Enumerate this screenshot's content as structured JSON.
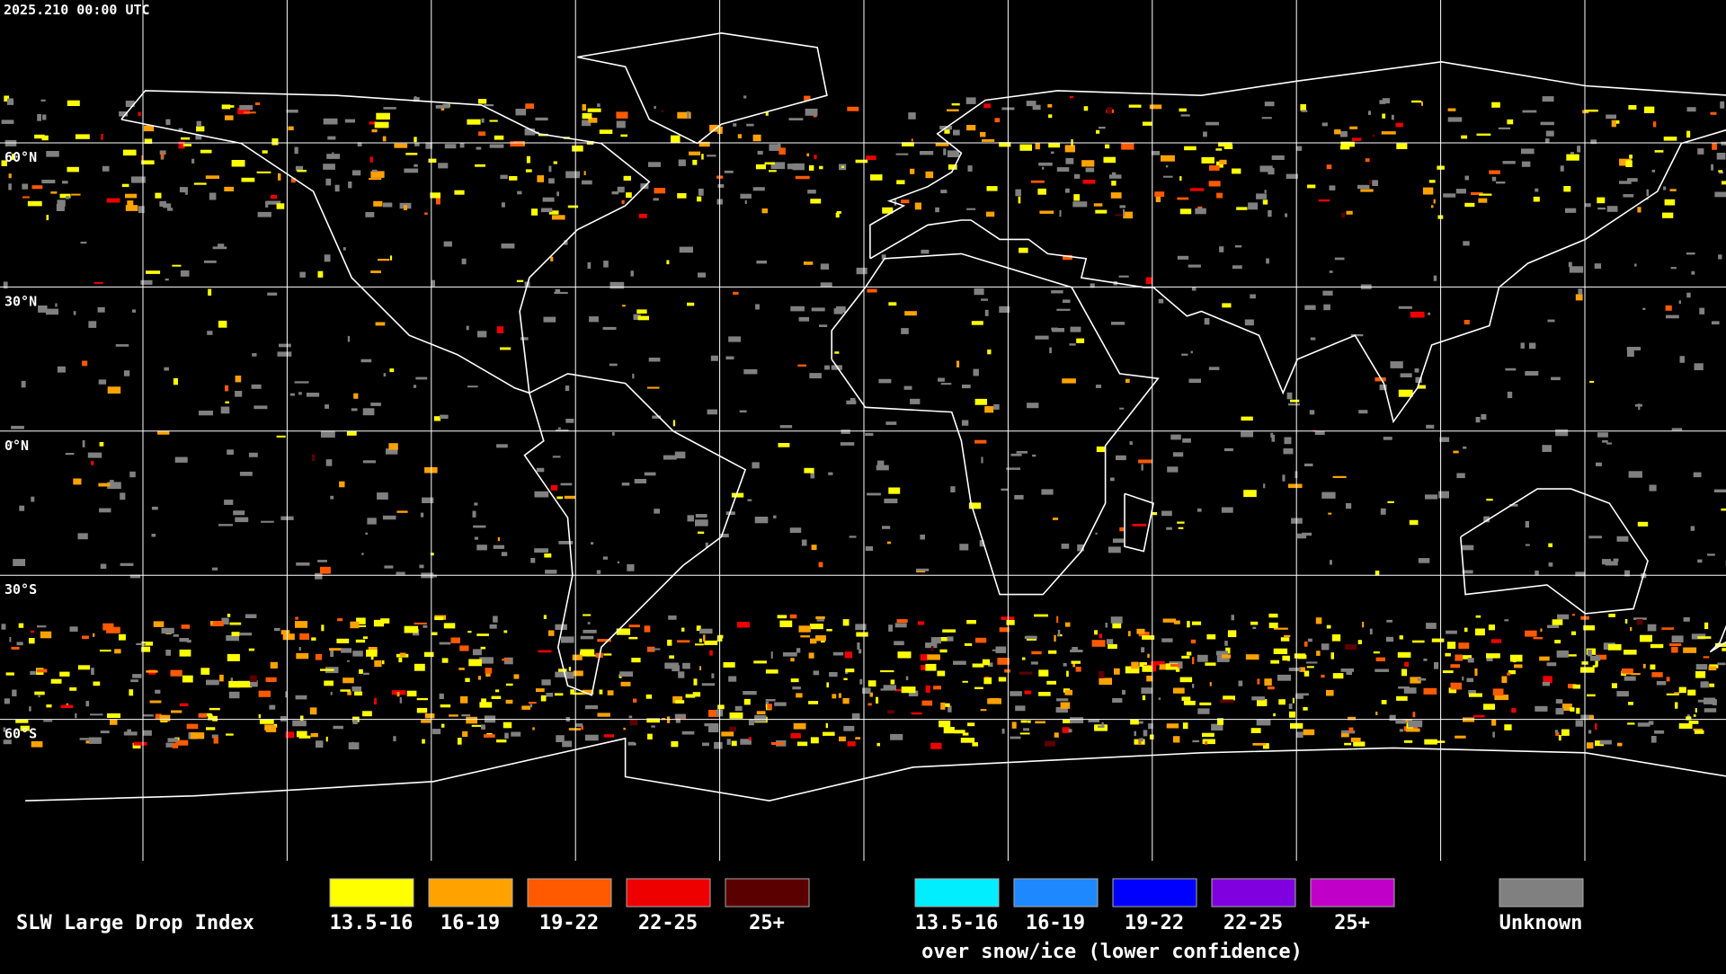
{
  "timestamp": "2025.210 00:00 UTC",
  "latitude_labels": [
    "60°N",
    "30°N",
    "0°N",
    "30°S",
    "60°S"
  ],
  "legend": {
    "title": "SLW Large Drop Index",
    "items": [
      {
        "label": "13.5-16",
        "color": "#ffff00"
      },
      {
        "label": "16-19",
        "color": "#ffa200"
      },
      {
        "label": "19-22",
        "color": "#ff5a00"
      },
      {
        "label": "22-25",
        "color": "#ee0000"
      },
      {
        "label": "25+",
        "color": "#5a0000"
      }
    ],
    "snow_items": [
      {
        "label": "13.5-16",
        "color": "#00eeff"
      },
      {
        "label": "16-19",
        "color": "#1e88ff"
      },
      {
        "label": "19-22",
        "color": "#0000ff"
      },
      {
        "label": "22-25",
        "color": "#8000e0"
      },
      {
        "label": "25+",
        "color": "#c000c8"
      }
    ],
    "snow_caption": "over snow/ice (lower confidence)",
    "unknown": {
      "label": "Unknown",
      "color": "#808080"
    }
  }
}
